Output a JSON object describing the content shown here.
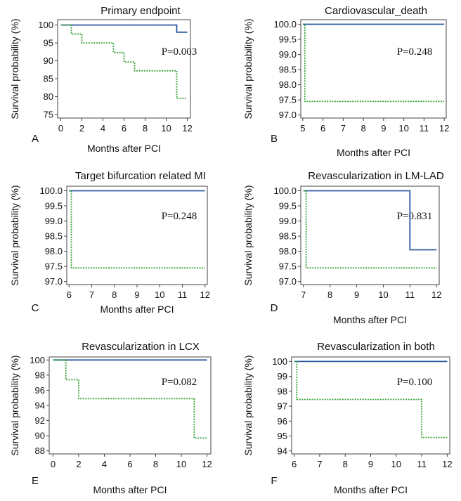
{
  "figure": {
    "colors": {
      "group1": "#2b5aa0",
      "group2": "#3aa33a",
      "axis": "#444444",
      "text": "#111111"
    }
  },
  "chart_data": [
    {
      "type": "line",
      "panel": "A",
      "title": "Primary endpoint",
      "xlabel": "Months after PCI",
      "ylabel": "Survival probability (%)",
      "xlim": [
        -0.3,
        12.3
      ],
      "ylim": [
        74,
        101.5
      ],
      "xticks": [
        0,
        2,
        4,
        6,
        8,
        10,
        12
      ],
      "yticks": [
        75,
        80,
        85,
        90,
        95,
        100
      ],
      "ytick_labels": [
        "75",
        "80",
        "85",
        "90",
        "95",
        "100"
      ],
      "p_value": "P=0.003",
      "series": [
        {
          "name": "group1",
          "style": "solid",
          "x": [
            0,
            11,
            11,
            12
          ],
          "y": [
            100,
            100,
            98,
            98
          ]
        },
        {
          "name": "group2",
          "style": "dotted",
          "x": [
            0,
            1,
            1,
            2,
            2,
            5,
            5,
            6,
            6,
            7,
            7,
            11,
            11,
            12
          ],
          "y": [
            100,
            100,
            97.5,
            97.5,
            95,
            95,
            92.3,
            92.3,
            89.7,
            89.7,
            87.2,
            87.2,
            79.5,
            79.5
          ]
        }
      ]
    },
    {
      "type": "line",
      "panel": "B",
      "title": "Cardiovascular_death",
      "xlabel": "Months after PCI",
      "ylabel": "Survival probability (%)",
      "xlim": [
        4.9,
        12.1
      ],
      "ylim": [
        96.9,
        100.15
      ],
      "xticks": [
        5,
        6,
        7,
        8,
        9,
        10,
        11,
        12
      ],
      "yticks": [
        97,
        97.5,
        98,
        98.5,
        99,
        99.5,
        100
      ],
      "ytick_labels": [
        "97.0",
        "97.5",
        "98.0",
        "98.5",
        "99.0",
        "99.5",
        "100.0"
      ],
      "p_value": "P=0.248",
      "series": [
        {
          "name": "group1",
          "style": "solid",
          "x": [
            5,
            12
          ],
          "y": [
            100,
            100
          ]
        },
        {
          "name": "group2",
          "style": "dotted",
          "x": [
            5,
            5.1,
            5.1,
            12
          ],
          "y": [
            100,
            100,
            97.45,
            97.45
          ]
        }
      ]
    },
    {
      "type": "line",
      "panel": "C",
      "title": "Target bifurcation related MI",
      "xlabel": "Months after PCI",
      "ylabel": "Survival probability (%)",
      "xlim": [
        5.9,
        12.1
      ],
      "ylim": [
        96.9,
        100.15
      ],
      "xticks": [
        6,
        7,
        8,
        9,
        10,
        11,
        12
      ],
      "yticks": [
        97,
        97.5,
        98,
        98.5,
        99,
        99.5,
        100
      ],
      "ytick_labels": [
        "97.0",
        "97.5",
        "98.0",
        "98.5",
        "99.0",
        "99.5",
        "100.0"
      ],
      "p_value": "P=0.248",
      "series": [
        {
          "name": "group1",
          "style": "solid",
          "x": [
            6,
            12
          ],
          "y": [
            100,
            100
          ]
        },
        {
          "name": "group2",
          "style": "dotted",
          "x": [
            6,
            6.1,
            6.1,
            12
          ],
          "y": [
            100,
            100,
            97.45,
            97.45
          ]
        }
      ]
    },
    {
      "type": "line",
      "panel": "D",
      "title": "Revascularization in LM-LAD",
      "xlabel": "Months after PCI",
      "ylabel": "Survival probability (%)",
      "xlim": [
        6.9,
        12.1
      ],
      "ylim": [
        96.9,
        100.15
      ],
      "xticks": [
        7,
        8,
        9,
        10,
        11,
        12
      ],
      "yticks": [
        97,
        97.5,
        98,
        98.5,
        99,
        99.5,
        100
      ],
      "ytick_labels": [
        "97.0",
        "97.5",
        "98.0",
        "98.5",
        "99.0",
        "99.5",
        "100.0"
      ],
      "p_value": "P=0.831",
      "series": [
        {
          "name": "group1",
          "style": "solid",
          "x": [
            7,
            11,
            11,
            12
          ],
          "y": [
            100,
            100,
            98.05,
            98.05
          ]
        },
        {
          "name": "group2",
          "style": "dotted",
          "x": [
            7,
            7.1,
            7.1,
            12
          ],
          "y": [
            100,
            100,
            97.45,
            97.45
          ]
        }
      ]
    },
    {
      "type": "line",
      "panel": "E",
      "title": "Revascularization in LCX",
      "xlabel": "Months after PCI",
      "ylabel": "Survival probability (%)",
      "xlim": [
        -0.3,
        12.3
      ],
      "ylim": [
        87.6,
        100.4
      ],
      "xticks": [
        0,
        2,
        4,
        6,
        8,
        10,
        12
      ],
      "yticks": [
        88,
        90,
        92,
        94,
        96,
        98,
        100
      ],
      "ytick_labels": [
        "88",
        "90",
        "92",
        "94",
        "96",
        "98",
        "100"
      ],
      "p_value": "P=0.082",
      "series": [
        {
          "name": "group1",
          "style": "solid",
          "x": [
            0,
            12
          ],
          "y": [
            100,
            100
          ]
        },
        {
          "name": "group2",
          "style": "dotted",
          "x": [
            0,
            1,
            1,
            2,
            2,
            11,
            11,
            12
          ],
          "y": [
            100,
            100,
            97.4,
            97.4,
            94.9,
            94.9,
            89.7,
            89.7
          ]
        }
      ]
    },
    {
      "type": "line",
      "panel": "F",
      "title": "Revascularization in both",
      "xlabel": "Months after PCI",
      "ylabel": "Survival probability (%)",
      "xlim": [
        5.9,
        12.1
      ],
      "ylim": [
        93.8,
        100.3
      ],
      "xticks": [
        6,
        7,
        8,
        9,
        10,
        11,
        12
      ],
      "yticks": [
        94,
        95,
        96,
        97,
        98,
        99,
        100
      ],
      "ytick_labels": [
        "94",
        "95",
        "96",
        "97",
        "98",
        "99",
        "100"
      ],
      "p_value": "P=0.100",
      "series": [
        {
          "name": "group1",
          "style": "solid",
          "x": [
            6,
            12
          ],
          "y": [
            100,
            100
          ]
        },
        {
          "name": "group2",
          "style": "dotted",
          "x": [
            6,
            6.1,
            6.1,
            11,
            11,
            12
          ],
          "y": [
            100,
            100,
            97.45,
            97.45,
            94.9,
            94.9
          ]
        }
      ]
    }
  ]
}
